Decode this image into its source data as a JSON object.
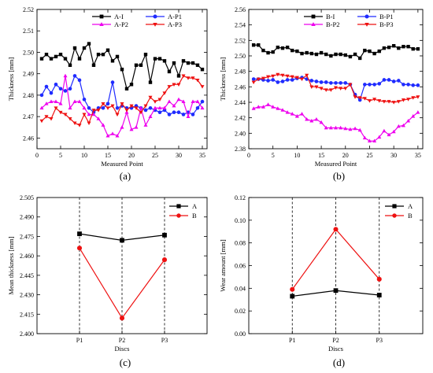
{
  "chart_data": [
    {
      "id": "a",
      "type": "line",
      "caption": "(a)",
      "xlabel": "Measured Point",
      "ylabel": "Thickness [mm]",
      "xlim": [
        0,
        36
      ],
      "ylim": [
        2.455,
        2.52
      ],
      "xticks": [
        0,
        5,
        10,
        15,
        20,
        25,
        30,
        35
      ],
      "yticks": [
        2.46,
        2.47,
        2.48,
        2.49,
        2.5,
        2.51,
        2.52
      ],
      "ydecimals": 2,
      "grid": false,
      "legend_columns": 2,
      "legend_position": "top-right",
      "x": [
        1,
        2,
        3,
        4,
        5,
        6,
        7,
        8,
        9,
        10,
        11,
        12,
        13,
        14,
        15,
        16,
        17,
        18,
        19,
        20,
        21,
        22,
        23,
        24,
        25,
        26,
        27,
        28,
        29,
        30,
        31,
        32,
        33,
        34,
        35
      ],
      "series": [
        {
          "name": "A-I",
          "color": "#000000",
          "marker": "square",
          "values": [
            2.497,
            2.499,
            2.497,
            2.498,
            2.499,
            2.497,
            2.494,
            2.502,
            2.497,
            2.502,
            2.504,
            2.494,
            2.499,
            2.499,
            2.501,
            2.496,
            2.498,
            2.492,
            2.483,
            2.485,
            2.494,
            2.494,
            2.499,
            2.486,
            2.497,
            2.497,
            2.496,
            2.491,
            2.495,
            2.489,
            2.496,
            2.495,
            2.495,
            2.494,
            2.492
          ]
        },
        {
          "name": "A-P1",
          "color": "#1f2bff",
          "marker": "circle",
          "values": [
            2.48,
            2.484,
            2.481,
            2.485,
            2.483,
            2.482,
            2.483,
            2.489,
            2.487,
            2.478,
            2.474,
            2.472,
            2.474,
            2.474,
            2.476,
            2.486,
            2.474,
            2.475,
            2.474,
            2.474,
            2.475,
            2.474,
            2.473,
            2.474,
            2.473,
            2.472,
            2.473,
            2.471,
            2.472,
            2.472,
            2.471,
            2.472,
            2.471,
            2.474,
            2.477
          ]
        },
        {
          "name": "A-P2",
          "color": "#ee00ee",
          "marker": "triangle-up",
          "values": [
            2.474,
            2.476,
            2.477,
            2.477,
            2.476,
            2.489,
            2.474,
            2.477,
            2.477,
            2.474,
            2.471,
            2.471,
            2.469,
            2.466,
            2.461,
            2.462,
            2.461,
            2.465,
            2.472,
            2.464,
            2.465,
            2.474,
            2.466,
            2.47,
            2.474,
            2.474,
            2.474,
            2.477,
            2.475,
            2.478,
            2.477,
            2.47,
            2.477,
            2.477,
            2.474
          ]
        },
        {
          "name": "A-P3",
          "color": "#ee1111",
          "marker": "triangle-down",
          "values": [
            2.468,
            2.47,
            2.469,
            2.474,
            2.472,
            2.471,
            2.469,
            2.467,
            2.466,
            2.471,
            2.467,
            2.473,
            2.473,
            2.476,
            2.474,
            2.475,
            2.471,
            2.476,
            2.473,
            2.475,
            2.474,
            2.472,
            2.475,
            2.479,
            2.477,
            2.478,
            2.481,
            2.484,
            2.485,
            2.485,
            2.489,
            2.488,
            2.488,
            2.487,
            2.484
          ]
        }
      ]
    },
    {
      "id": "b",
      "type": "line",
      "caption": "(b)",
      "xlabel": "Measured Point",
      "ylabel": "Thickness [mm]",
      "xlim": [
        0,
        36
      ],
      "ylim": [
        2.38,
        2.56
      ],
      "xticks": [
        0,
        5,
        10,
        15,
        20,
        25,
        30,
        35
      ],
      "yticks": [
        2.38,
        2.4,
        2.42,
        2.44,
        2.46,
        2.48,
        2.5,
        2.52,
        2.54,
        2.56
      ],
      "ydecimals": 2,
      "grid": false,
      "legend_columns": 2,
      "legend_position": "top-right",
      "x": [
        1,
        2,
        3,
        4,
        5,
        6,
        7,
        8,
        9,
        10,
        11,
        12,
        13,
        14,
        15,
        16,
        17,
        18,
        19,
        20,
        21,
        22,
        23,
        24,
        25,
        26,
        27,
        28,
        29,
        30,
        31,
        32,
        33,
        34,
        35
      ],
      "series": [
        {
          "name": "B-I",
          "color": "#000000",
          "marker": "square",
          "values": [
            2.514,
            2.514,
            2.507,
            2.504,
            2.505,
            2.511,
            2.51,
            2.511,
            2.507,
            2.506,
            2.503,
            2.504,
            2.503,
            2.502,
            2.504,
            2.502,
            2.5,
            2.502,
            2.502,
            2.501,
            2.499,
            2.502,
            2.497,
            2.507,
            2.506,
            2.503,
            2.506,
            2.51,
            2.511,
            2.513,
            2.51,
            2.512,
            2.512,
            2.509,
            2.509
          ]
        },
        {
          "name": "B-P1",
          "color": "#1f2bff",
          "marker": "circle",
          "values": [
            2.47,
            2.47,
            2.469,
            2.468,
            2.469,
            2.466,
            2.467,
            2.469,
            2.469,
            2.471,
            2.472,
            2.47,
            2.468,
            2.467,
            2.466,
            2.466,
            2.465,
            2.465,
            2.465,
            2.465,
            2.463,
            2.45,
            2.443,
            2.463,
            2.463,
            2.463,
            2.464,
            2.469,
            2.469,
            2.467,
            2.468,
            2.463,
            2.463,
            2.462,
            2.462
          ]
        },
        {
          "name": "B-P2",
          "color": "#ee00ee",
          "marker": "triangle-up",
          "values": [
            2.432,
            2.434,
            2.434,
            2.437,
            2.434,
            2.432,
            2.43,
            2.427,
            2.425,
            2.422,
            2.425,
            2.418,
            2.416,
            2.418,
            2.414,
            2.407,
            2.407,
            2.407,
            2.407,
            2.406,
            2.405,
            2.406,
            2.404,
            2.394,
            2.39,
            2.39,
            2.395,
            2.403,
            2.398,
            2.402,
            2.409,
            2.41,
            2.416,
            2.422,
            2.427
          ]
        },
        {
          "name": "B-P3",
          "color": "#ee1111",
          "marker": "triangle-down",
          "values": [
            2.466,
            2.47,
            2.471,
            2.473,
            2.474,
            2.476,
            2.475,
            2.474,
            2.473,
            2.472,
            2.47,
            2.475,
            2.46,
            2.46,
            2.458,
            2.456,
            2.456,
            2.459,
            2.458,
            2.458,
            2.463,
            2.447,
            2.446,
            2.445,
            2.442,
            2.444,
            2.442,
            2.441,
            2.441,
            2.44,
            2.441,
            2.443,
            2.444,
            2.446,
            2.447
          ]
        }
      ]
    },
    {
      "id": "c",
      "type": "line",
      "caption": "(c)",
      "xlabel": "Discs",
      "ylabel": "Mean thickness [mm]",
      "categories": [
        "P1",
        "P2",
        "P3"
      ],
      "ylim": [
        2.4,
        2.505
      ],
      "yticks": [
        2.4,
        2.415,
        2.43,
        2.445,
        2.46,
        2.475,
        2.49,
        2.505
      ],
      "ydecimals": 3,
      "grid": false,
      "vlines": "dashed at each category",
      "legend_columns": 1,
      "legend_position": "top-right",
      "series": [
        {
          "name": "A",
          "color": "#000000",
          "marker": "square",
          "values": [
            2.477,
            2.472,
            2.476
          ]
        },
        {
          "name": "B",
          "color": "#ee1111",
          "marker": "circle",
          "values": [
            2.466,
            2.412,
            2.457
          ]
        }
      ]
    },
    {
      "id": "d",
      "type": "line",
      "caption": "(d)",
      "xlabel": "Discs",
      "ylabel": "Wear amount [mm]",
      "categories": [
        "P1",
        "P2",
        "P3"
      ],
      "ylim": [
        0.0,
        0.12
      ],
      "yticks": [
        0.0,
        0.02,
        0.04,
        0.06,
        0.08,
        0.1,
        0.12
      ],
      "ydecimals": 2,
      "grid": false,
      "vlines": "dashed at each category",
      "legend_columns": 1,
      "legend_position": "top-right",
      "series": [
        {
          "name": "A",
          "color": "#000000",
          "marker": "square",
          "values": [
            0.033,
            0.038,
            0.034
          ]
        },
        {
          "name": "B",
          "color": "#ee1111",
          "marker": "circle",
          "values": [
            0.039,
            0.092,
            0.048
          ]
        }
      ]
    }
  ]
}
